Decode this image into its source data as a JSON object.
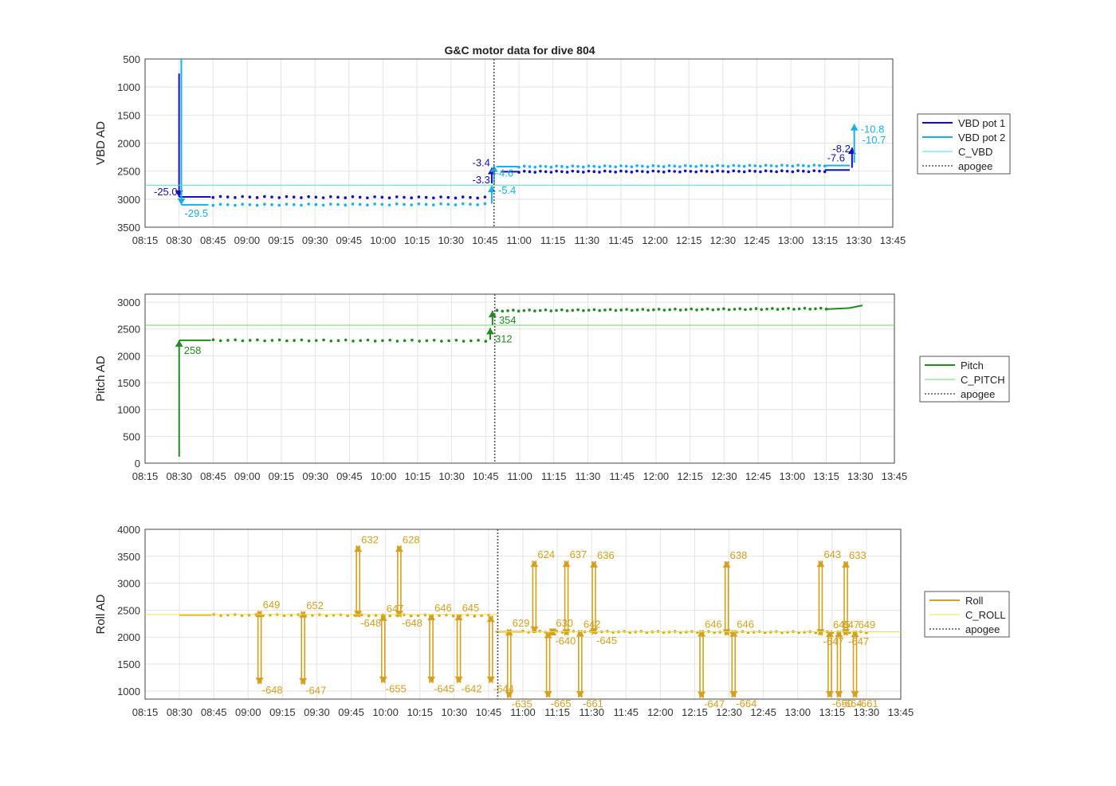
{
  "figure_title": "G&C motor data for dive 804",
  "colors": {
    "vbd1": "#1010c0",
    "vbd2": "#18b0e8",
    "c_vbd": "#40e0d0",
    "pitch": "#228b22",
    "c_pitch": "#66dd66",
    "roll": "#d4a020",
    "c_roll": "#f0e040",
    "apogee": "#555555",
    "grid": "#e4e4e4"
  },
  "chart_data": [
    {
      "type": "line",
      "ylabel": "VBD AD",
      "y_reversed": true,
      "ylim": [
        500,
        3500
      ],
      "yticks": [
        500,
        1000,
        1500,
        2000,
        2500,
        3000,
        3500
      ],
      "xticks": [
        "08:15",
        "08:30",
        "08:45",
        "09:00",
        "09:15",
        "09:30",
        "09:45",
        "10:00",
        "10:15",
        "10:30",
        "10:45",
        "11:00",
        "11:15",
        "11:30",
        "11:45",
        "12:00",
        "12:15",
        "12:30",
        "12:45",
        "13:00",
        "13:15",
        "13:30",
        "13:45"
      ],
      "xlim": [
        "08:15",
        "13:45"
      ],
      "grid": true,
      "legend_position": "right",
      "legend": [
        "VBD pot 1",
        "VBD pot 2",
        "C_VBD",
        "apogee"
      ],
      "series": [
        {
          "name": "VBD pot 1",
          "segments": [
            {
              "x": [
                "08:30",
                "08:30"
              ],
              "y": [
                760,
                2960
              ]
            },
            {
              "x": [
                "08:30",
                "08:44"
              ],
              "y": [
                2960,
                2960
              ]
            },
            {
              "x": [
                "10:48",
                "10:48"
              ],
              "y": [
                2720,
                2440
              ]
            },
            {
              "x": [
                "10:52",
                "11:00"
              ],
              "y": [
                2510,
                2510
              ]
            },
            {
              "x": [
                "13:15",
                "13:26"
              ],
              "y": [
                2480,
                2480
              ]
            },
            {
              "x": [
                "13:27",
                "13:27"
              ],
              "y": [
                2440,
                2080
              ]
            }
          ],
          "dots": {
            "x_start": "08:45",
            "x_end": "10:45",
            "y_start": 2960,
            "y_end": 2970,
            "n": 38,
            "x2_start": "11:00",
            "x2_end": "13:15",
            "y2_start": 2510,
            "y2_end": 2500,
            "n2": 58
          }
        },
        {
          "name": "VBD pot 2",
          "segments": [
            {
              "x": [
                "08:31",
                "08:31"
              ],
              "y": [
                500,
                3100
              ]
            },
            {
              "x": [
                "08:31",
                "08:43"
              ],
              "y": [
                3100,
                3100
              ]
            },
            {
              "x": [
                "10:48",
                "10:48"
              ],
              "y": [
                3080,
                2760
              ]
            },
            {
              "x": [
                "10:49",
                "10:49"
              ],
              "y": [
                2740,
                2400
              ]
            },
            {
              "x": [
                "10:50",
                "11:00"
              ],
              "y": [
                2420,
                2420
              ]
            },
            {
              "x": [
                "13:15",
                "13:26"
              ],
              "y": [
                2400,
                2400
              ]
            },
            {
              "x": [
                "13:28",
                "13:28"
              ],
              "y": [
                2350,
                1660
              ]
            }
          ],
          "dots": {
            "x_start": "08:45",
            "x_end": "10:45",
            "y_start": 3100,
            "y_end": 3090,
            "n": 38,
            "x2_start": "11:00",
            "x2_end": "13:15",
            "y2_start": 2420,
            "y2_end": 2400,
            "n2": 58
          }
        },
        {
          "name": "C_VBD",
          "y": 2750
        },
        {
          "name": "apogee",
          "x": "10:49"
        }
      ],
      "annotations": [
        {
          "text": "-25.0",
          "x": "08:30",
          "y": 2960,
          "series": "VBD pot 1"
        },
        {
          "text": "-29.5",
          "x": "08:31",
          "y": 3100,
          "series": "VBD pot 2"
        },
        {
          "text": "-3.4",
          "x": "10:48",
          "y": 2440,
          "series": "VBD pot 1"
        },
        {
          "text": "-3.3",
          "x": "10:48",
          "y": 2720,
          "series": "VBD pot 1"
        },
        {
          "text": "-4.6",
          "x": "10:49",
          "y": 2400,
          "series": "VBD pot 2"
        },
        {
          "text": "-5.4",
          "x": "10:48",
          "y": 2760,
          "series": "VBD pot 2"
        },
        {
          "text": "-8.2",
          "x": "13:27",
          "y": 2080,
          "series": "VBD pot 1"
        },
        {
          "text": "-7.6",
          "x": "13:26",
          "y": 2440,
          "series": "VBD pot 1"
        },
        {
          "text": "-10.8",
          "x": "13:28",
          "y": 1660,
          "series": "VBD pot 2"
        },
        {
          "text": "-10.7",
          "x": "13:28",
          "y": 1880,
          "series": "VBD pot 2"
        }
      ]
    },
    {
      "type": "line",
      "ylabel": "Pitch AD",
      "ylim": [
        0,
        3150
      ],
      "yticks": [
        0,
        500,
        1000,
        1500,
        2000,
        2500,
        3000
      ],
      "xticks": [
        "08:15",
        "08:30",
        "08:45",
        "09:00",
        "09:15",
        "09:30",
        "09:45",
        "10:00",
        "10:15",
        "10:30",
        "10:45",
        "11:00",
        "11:15",
        "11:30",
        "11:45",
        "12:00",
        "12:15",
        "12:30",
        "12:45",
        "13:00",
        "13:15",
        "13:30",
        "13:45"
      ],
      "xlim": [
        "08:15",
        "13:45"
      ],
      "grid": true,
      "legend_position": "right",
      "legend": [
        "Pitch",
        "C_PITCH",
        "apogee"
      ],
      "series": [
        {
          "name": "Pitch",
          "segments": [
            {
              "x": [
                "08:30",
                "08:30"
              ],
              "y": [
                120,
                2290
              ]
            },
            {
              "x": [
                "08:30",
                "08:44"
              ],
              "y": [
                2290,
                2290
              ]
            },
            {
              "x": [
                "10:47",
                "10:47"
              ],
              "y": [
                2300,
                2520
              ]
            },
            {
              "x": [
                "10:48",
                "10:48"
              ],
              "y": [
                2570,
                2840
              ]
            },
            {
              "x": [
                "13:15",
                "13:25"
              ],
              "y": [
                2870,
                2890
              ]
            },
            {
              "x": [
                "13:25",
                "13:31"
              ],
              "y": [
                2890,
                2940
              ]
            }
          ],
          "dots": {
            "x_start": "08:45",
            "x_end": "10:45",
            "y_start": 2290,
            "y_end": 2280,
            "n": 38,
            "x2_start": "10:50",
            "x2_end": "13:15",
            "y2_start": 2840,
            "y2_end": 2880,
            "n2": 62
          }
        },
        {
          "name": "C_PITCH",
          "y": 2570
        },
        {
          "name": "apogee",
          "x": "10:49"
        }
      ],
      "annotations": [
        {
          "text": "258",
          "x": "08:30",
          "y": 2290
        },
        {
          "text": "354",
          "x": "10:48",
          "y": 2840
        },
        {
          "text": "312",
          "x": "10:47",
          "y": 2520
        }
      ]
    },
    {
      "type": "line",
      "ylabel": "Roll AD",
      "ylim": [
        850,
        4000
      ],
      "yticks": [
        1000,
        1500,
        2000,
        2500,
        3000,
        3500,
        4000
      ],
      "xticks": [
        "08:15",
        "08:30",
        "08:45",
        "09:00",
        "09:15",
        "09:30",
        "09:45",
        "10:00",
        "10:15",
        "10:30",
        "10:45",
        "11:00",
        "11:15",
        "11:30",
        "11:45",
        "12:00",
        "12:15",
        "12:30",
        "12:45",
        "13:00",
        "13:15",
        "13:30",
        "13:45"
      ],
      "xlim": [
        "08:15",
        "13:45"
      ],
      "grid": true,
      "legend_position": "right",
      "legend": [
        "Roll",
        "C_ROLL",
        "apogee"
      ],
      "series": [
        {
          "name": "Roll",
          "baseline_segments": [
            {
              "x": [
                "08:30",
                "08:44"
              ],
              "y": [
                2410,
                2410
              ]
            },
            {
              "x": [
                "10:48",
                "11:00"
              ],
              "y": [
                2100,
                2100
              ]
            }
          ],
          "dots": {
            "x_start": "08:45",
            "x_end": "10:45",
            "y_start": 2410,
            "y_end": 2400,
            "n": 40,
            "x2_start": "11:00",
            "x2_end": "13:30",
            "y2_start": 2100,
            "y2_end": 2090,
            "n2": 62
          },
          "arrows": [
            {
              "x": "09:05",
              "y0": 1130,
              "y1": 2490,
              "top": "649",
              "bottom": "-648"
            },
            {
              "x": "09:24",
              "y0": 1120,
              "y1": 2480,
              "top": "652",
              "bottom": "-647"
            },
            {
              "x": "09:48",
              "y0": 2370,
              "y1": 3700,
              "top": "632",
              "bottom": "-648"
            },
            {
              "x": "09:59",
              "y0": 1150,
              "y1": 2420,
              "top": "647",
              "bottom": "-655"
            },
            {
              "x": "10:06",
              "y0": 2370,
              "y1": 3700,
              "top": "628",
              "bottom": "-648"
            },
            {
              "x": "10:20",
              "y0": 1150,
              "y1": 2430,
              "top": "646",
              "bottom": "-645"
            },
            {
              "x": "10:32",
              "y0": 1150,
              "y1": 2430,
              "top": "645",
              "bottom": "-642"
            },
            {
              "x": "10:46",
              "y0": 1150,
              "y1": 2400,
              "top": "",
              "bottom": "-644"
            },
            {
              "x": "10:54",
              "y0": 870,
              "y1": 2150,
              "top": "629",
              "bottom": "-635"
            },
            {
              "x": "11:05",
              "y0": 2080,
              "y1": 3420,
              "top": "624",
              "bottom": ""
            },
            {
              "x": "11:11",
              "y0": 880,
              "y1": 2100,
              "top": "",
              "bottom": "-665"
            },
            {
              "x": "11:13",
              "y0": 2040,
              "y1": 2150,
              "top": "630",
              "bottom": "-640"
            },
            {
              "x": "11:19",
              "y0": 2030,
              "y1": 3420,
              "top": "637",
              "bottom": ""
            },
            {
              "x": "11:25",
              "y0": 880,
              "y1": 2130,
              "top": "642",
              "bottom": "-661"
            },
            {
              "x": "11:31",
              "y0": 2050,
              "y1": 3410,
              "top": "636",
              "bottom": "-645"
            },
            {
              "x": "12:18",
              "y0": 870,
              "y1": 2130,
              "top": "646",
              "bottom": "-647"
            },
            {
              "x": "12:29",
              "y0": 2030,
              "y1": 3410,
              "top": "638",
              "bottom": ""
            },
            {
              "x": "12:32",
              "y0": 880,
              "y1": 2130,
              "top": "646",
              "bottom": "-664"
            },
            {
              "x": "13:10",
              "y0": 2030,
              "y1": 3420,
              "top": "643",
              "bottom": "-647"
            },
            {
              "x": "13:14",
              "y0": 880,
              "y1": 2120,
              "top": "645",
              "bottom": "-650"
            },
            {
              "x": "13:18",
              "y0": 880,
              "y1": 2120,
              "top": "647",
              "bottom": "-664"
            },
            {
              "x": "13:21",
              "y0": 2030,
              "y1": 3410,
              "top": "633",
              "bottom": "-647"
            },
            {
              "x": "13:25",
              "y0": 880,
              "y1": 2120,
              "top": "649",
              "bottom": "-661"
            }
          ]
        },
        {
          "name": "C_ROLL",
          "y": 2420,
          "y2": 2100
        },
        {
          "name": "apogee",
          "x": "10:49"
        }
      ]
    }
  ]
}
